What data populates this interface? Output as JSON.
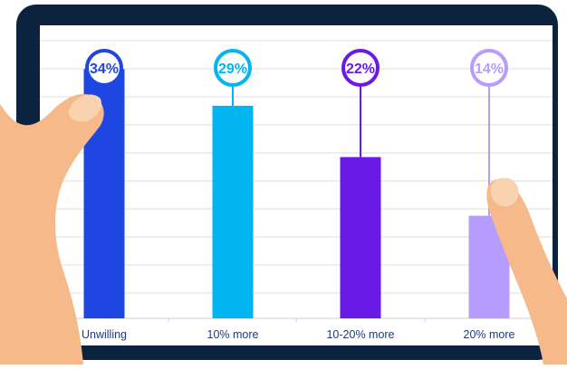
{
  "chart_data": {
    "type": "bar",
    "categories": [
      "Unwilling",
      "10% more",
      "10-20% more",
      "20% more"
    ],
    "values": [
      34,
      29,
      22,
      14
    ],
    "value_labels": [
      "34%",
      "29%",
      "22%",
      "14%"
    ],
    "colors": [
      "#1e46e0",
      "#00b5f0",
      "#6a1ae6",
      "#b79cff"
    ],
    "title": "",
    "xlabel": "",
    "ylabel": "",
    "ylim": [
      0,
      38
    ],
    "grid": true,
    "legend": "none"
  },
  "frame": {
    "bezel_color": "#0c2340",
    "screen_color": "#ffffff",
    "grid_color": "#dcdcdc",
    "label_color": "#1b3a8f",
    "skin_color": "#f6b98a",
    "nail_color": "#f9d3b0"
  }
}
